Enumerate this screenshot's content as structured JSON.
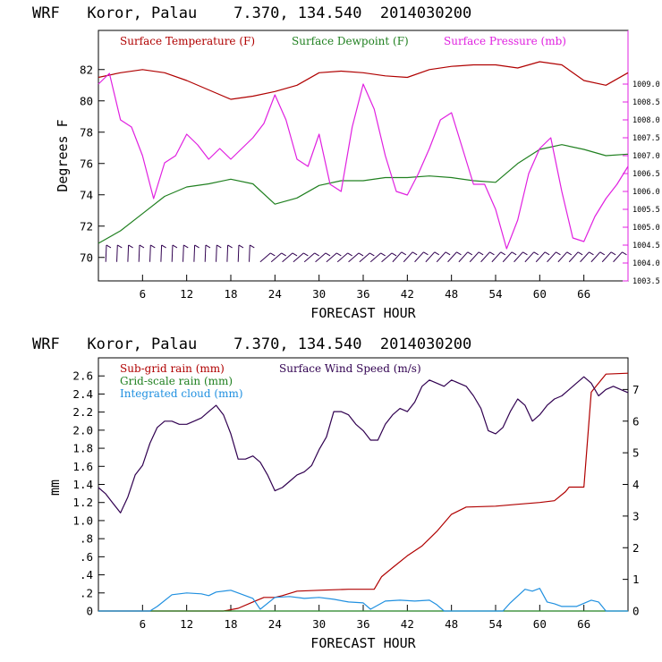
{
  "chart_data": [
    {
      "type": "line",
      "title": "WRF   Koror, Palau    7.370, 134.540  2014030200",
      "xlabel": "FORECAST HOUR",
      "ylabel": "Degrees F",
      "xlim": [
        0,
        72
      ],
      "ylim": [
        68.5,
        84.5
      ],
      "y2lim": [
        1003.5,
        1010.5
      ],
      "x_ticks": [
        6,
        12,
        18,
        24,
        30,
        36,
        42,
        48,
        54,
        60,
        66
      ],
      "y_ticks": [
        70,
        72,
        74,
        76,
        78,
        80,
        82
      ],
      "y2_ticks": [
        "1003.5",
        "1004.0",
        "1004.5",
        "1005.0",
        "1005.5",
        "1006.0",
        "1006.5",
        "1007.0",
        "1007.5",
        "1008.0",
        "1008.5",
        "1009.0"
      ],
      "legend": [
        "Surface Temperature (F)",
        "Surface Dewpoint (F)",
        "Surface Pressure (mb)"
      ],
      "series": [
        {
          "name": "Surface Temperature (F)",
          "color": "#b00000",
          "axis": "left",
          "x": [
            0,
            3,
            6,
            9,
            12,
            15,
            18,
            21,
            24,
            27,
            30,
            33,
            36,
            39,
            42,
            45,
            48,
            51,
            54,
            57,
            60,
            63,
            66,
            69,
            72
          ],
          "values": [
            81.5,
            81.8,
            82.0,
            81.8,
            81.3,
            80.7,
            80.1,
            80.3,
            80.6,
            81.0,
            81.8,
            81.9,
            81.8,
            81.6,
            81.5,
            82.0,
            82.2,
            82.3,
            82.3,
            82.1,
            82.5,
            82.3,
            81.3,
            81.0,
            81.8
          ]
        },
        {
          "name": "Surface Dewpoint (F)",
          "color": "#208020",
          "axis": "left",
          "x": [
            0,
            3,
            6,
            9,
            12,
            15,
            18,
            21,
            24,
            27,
            30,
            33,
            36,
            39,
            42,
            45,
            48,
            51,
            54,
            57,
            60,
            63,
            66,
            69,
            72
          ],
          "values": [
            70.9,
            71.7,
            72.8,
            73.9,
            74.5,
            74.7,
            75.0,
            74.7,
            73.4,
            73.8,
            74.6,
            74.9,
            74.9,
            75.1,
            75.1,
            75.2,
            75.1,
            74.9,
            74.8,
            76.0,
            76.9,
            77.2,
            76.9,
            76.5,
            76.6
          ]
        },
        {
          "name": "Surface Pressure (mb)",
          "color": "#e020e0",
          "axis": "right",
          "x": [
            0,
            1.5,
            3,
            4.5,
            6,
            7.5,
            9,
            10.5,
            12,
            13.5,
            15,
            16.5,
            18,
            19.5,
            21,
            22.5,
            24,
            25.5,
            27,
            28.5,
            30,
            31.5,
            33,
            34.5,
            36,
            37.5,
            39,
            40.5,
            42,
            43.5,
            45,
            46.5,
            48,
            49.5,
            51,
            52.5,
            54,
            55.5,
            57,
            58.5,
            60,
            61.5,
            63,
            64.5,
            66,
            67.5,
            69,
            70.5,
            72
          ],
          "values": [
            1009.0,
            1009.3,
            1008.0,
            1007.8,
            1007.0,
            1005.8,
            1006.8,
            1007.0,
            1007.6,
            1007.3,
            1006.9,
            1007.2,
            1006.9,
            1007.2,
            1007.5,
            1007.9,
            1008.7,
            1008.0,
            1006.9,
            1006.7,
            1007.6,
            1006.2,
            1006.0,
            1007.8,
            1009.0,
            1008.3,
            1007.0,
            1006.0,
            1005.9,
            1006.5,
            1007.2,
            1008.0,
            1008.2,
            1007.2,
            1006.2,
            1006.2,
            1005.5,
            1004.4,
            1005.2,
            1006.5,
            1007.2,
            1007.5,
            1006.0,
            1004.7,
            1004.6,
            1005.3,
            1005.8,
            1006.2,
            1006.7
          ]
        }
      ],
      "wind_barbs": "lower strip of wind barbs along y≈70"
    },
    {
      "type": "line",
      "title": "WRF   Koror, Palau    7.370, 134.540  2014030200",
      "xlabel": "FORECAST HOUR",
      "ylabel": "mm",
      "xlim": [
        0,
        72
      ],
      "ylim": [
        0,
        2.8
      ],
      "y2lim": [
        0,
        8
      ],
      "x_ticks": [
        6,
        12,
        18,
        24,
        30,
        36,
        42,
        48,
        54,
        60,
        66
      ],
      "y_ticks": [
        0,
        0.2,
        0.4,
        0.6,
        0.8,
        1.0,
        1.2,
        1.4,
        1.6,
        1.8,
        2.0,
        2.2,
        2.4,
        2.6
      ],
      "y_tick_labels": [
        "0",
        ".2",
        ".4",
        ".6",
        ".8",
        "1.0",
        "1.2",
        "1.4",
        "1.6",
        "1.8",
        "2.0",
        "2.2",
        "2.4",
        "2.6"
      ],
      "y2_ticks": [
        "0",
        "1",
        "2",
        "3",
        "4",
        "5",
        "6",
        "7"
      ],
      "legend": [
        "Sub-grid rain (mm)",
        "Grid-scale rain (mm)",
        "Integrated cloud (mm)",
        "Surface Wind Speed (m/s)"
      ],
      "series": [
        {
          "name": "Sub-grid rain (mm)",
          "color": "#b00000",
          "axis": "left",
          "x": [
            0,
            17,
            19,
            21,
            22.5,
            24,
            25,
            27,
            30,
            34,
            37.5,
            38.5,
            40,
            42,
            44,
            46,
            48,
            50,
            54,
            57,
            60,
            62,
            63.5,
            64,
            66,
            67,
            69,
            72
          ],
          "values": [
            0,
            0,
            0.03,
            0.1,
            0.15,
            0.15,
            0.17,
            0.22,
            0.23,
            0.24,
            0.24,
            0.38,
            0.48,
            0.61,
            0.72,
            0.88,
            1.07,
            1.15,
            1.16,
            1.18,
            1.2,
            1.22,
            1.32,
            1.37,
            1.37,
            2.42,
            2.62,
            2.63
          ]
        },
        {
          "name": "Grid-scale rain (mm)",
          "color": "#208020",
          "axis": "left",
          "x": [
            0,
            72
          ],
          "values": [
            0,
            0
          ]
        },
        {
          "name": "Integrated cloud (mm)",
          "color": "#2090e0",
          "axis": "left",
          "x": [
            0,
            7,
            8,
            10,
            12,
            14,
            15,
            16,
            18,
            19,
            21,
            22,
            24,
            26,
            28,
            30,
            32,
            34,
            36,
            37,
            39,
            41,
            43,
            45,
            46,
            47,
            55,
            56,
            58,
            59,
            60,
            61,
            62,
            63,
            65,
            67,
            68,
            69,
            72
          ],
          "values": [
            0,
            0,
            0.05,
            0.18,
            0.2,
            0.19,
            0.17,
            0.21,
            0.23,
            0.2,
            0.14,
            0.02,
            0.15,
            0.16,
            0.14,
            0.15,
            0.13,
            0.1,
            0.09,
            0.02,
            0.11,
            0.12,
            0.11,
            0.12,
            0.07,
            0,
            0,
            0.09,
            0.24,
            0.22,
            0.25,
            0.1,
            0.08,
            0.05,
            0.05,
            0.12,
            0.1,
            0,
            0
          ]
        },
        {
          "name": "Surface Wind Speed (m/s)",
          "color": "#300050",
          "axis": "right",
          "x": [
            0,
            1,
            2,
            3,
            4,
            5,
            6,
            7,
            8,
            9,
            10,
            11,
            12,
            13,
            14,
            15,
            16,
            17,
            18,
            19,
            20,
            21,
            22,
            23,
            24,
            25,
            26,
            27,
            28,
            29,
            30,
            31,
            32,
            33,
            34,
            35,
            36,
            37,
            38,
            39,
            40,
            41,
            42,
            43,
            44,
            45,
            46,
            47,
            48,
            49,
            50,
            51,
            52,
            53,
            54,
            55,
            56,
            57,
            58,
            59,
            60,
            61,
            62,
            63,
            64,
            65,
            66,
            67,
            68,
            69,
            70,
            71,
            72
          ],
          "values": [
            3.9,
            3.7,
            3.4,
            3.1,
            3.6,
            4.3,
            4.6,
            5.3,
            5.8,
            6.0,
            6.0,
            5.9,
            5.9,
            6.0,
            6.1,
            6.3,
            6.5,
            6.2,
            5.6,
            4.8,
            4.8,
            4.9,
            4.7,
            4.3,
            3.8,
            3.9,
            4.1,
            4.3,
            4.4,
            4.6,
            5.1,
            5.5,
            6.3,
            6.3,
            6.2,
            5.9,
            5.7,
            5.4,
            5.4,
            5.9,
            6.2,
            6.4,
            6.3,
            6.6,
            7.1,
            7.3,
            7.2,
            7.1,
            7.3,
            7.2,
            7.1,
            6.8,
            6.4,
            5.7,
            5.6,
            5.8,
            6.3,
            6.7,
            6.5,
            6.0,
            6.2,
            6.5,
            6.7,
            6.8,
            7.0,
            7.2,
            7.4,
            7.2,
            6.8,
            7.0,
            7.1,
            7.0,
            6.9
          ]
        }
      ]
    }
  ]
}
